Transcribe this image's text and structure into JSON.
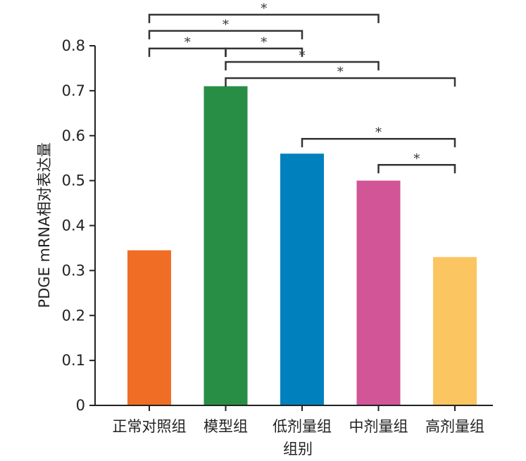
{
  "chart_data": {
    "type": "bar",
    "title": "",
    "xlabel": "组别",
    "ylabel": "PDGE mRNA相对表达量",
    "ylim": [
      0,
      0.8
    ],
    "yticks": [
      "0",
      "0.1",
      "0.2",
      "0.3",
      "0.4",
      "0.5",
      "0.6",
      "0.7",
      "0.8"
    ],
    "categories": [
      "正常对照组",
      "模型组",
      "低剂量组",
      "中剂量组",
      "高剂量组"
    ],
    "values": [
      0.345,
      0.71,
      0.56,
      0.5,
      0.33
    ],
    "colors": [
      "#f06d26",
      "#288e45",
      "#0081bd",
      "#d15597",
      "#fbc562"
    ],
    "grid": false,
    "significance": [
      {
        "from": 0,
        "to": 3,
        "label": "*",
        "y": 0.869
      },
      {
        "from": 0,
        "to": 2,
        "label": "*",
        "y": 0.833
      },
      {
        "from": 0,
        "to": 1,
        "label": "*",
        "y": 0.794
      },
      {
        "from": 1,
        "to": 2,
        "label": "*",
        "y": 0.794
      },
      {
        "from": 1,
        "to": 3,
        "label": "*",
        "y": 0.764
      },
      {
        "from": 1,
        "to": 4,
        "label": "*",
        "y": 0.728
      },
      {
        "from": 2,
        "to": 4,
        "label": "*",
        "y": 0.593
      },
      {
        "from": 3,
        "to": 4,
        "label": "*",
        "y": 0.535
      }
    ]
  }
}
